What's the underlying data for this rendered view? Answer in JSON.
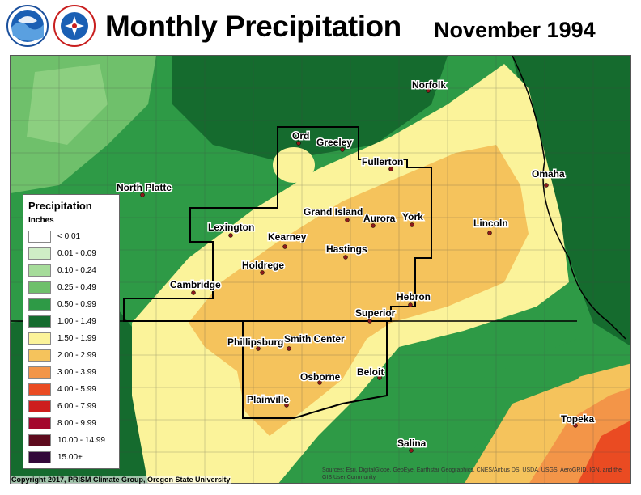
{
  "header": {
    "title": "Monthly Precipitation",
    "date": "November 1994",
    "logos": [
      {
        "name": "noaa-logo",
        "text": "NOAA"
      },
      {
        "name": "nws-logo",
        "text": "NATIONAL WEATHER SERVICE"
      }
    ]
  },
  "legend": {
    "title": "Precipitation",
    "units": "Inches",
    "items": [
      {
        "label": "< 0.01",
        "color": "#ffffff"
      },
      {
        "label": "0.01 - 0.09",
        "color": "#cfeec6"
      },
      {
        "label": "0.10 - 0.24",
        "color": "#a6dc9a"
      },
      {
        "label": "0.25 - 0.49",
        "color": "#6fc06b"
      },
      {
        "label": "0.50 - 0.99",
        "color": "#2e9a46"
      },
      {
        "label": "1.00 - 1.49",
        "color": "#156b2e"
      },
      {
        "label": "1.50 - 1.99",
        "color": "#fbf39a"
      },
      {
        "label": "2.00 - 2.99",
        "color": "#f5c35c"
      },
      {
        "label": "3.00 - 3.99",
        "color": "#f39548"
      },
      {
        "label": "4.00 - 5.99",
        "color": "#ea4b22"
      },
      {
        "label": "6.00 - 7.99",
        "color": "#cd1d1d"
      },
      {
        "label": "8.00 - 9.99",
        "color": "#a4062d"
      },
      {
        "label": "10.00 - 14.99",
        "color": "#5e0b1e"
      },
      {
        "label": "15.00+",
        "color": "#33083a"
      }
    ]
  },
  "cities": [
    {
      "name": "Norfolk"
    },
    {
      "name": "Ord"
    },
    {
      "name": "Greeley"
    },
    {
      "name": "Fullerton"
    },
    {
      "name": "North Platte"
    },
    {
      "name": "Omaha"
    },
    {
      "name": "Grand Island"
    },
    {
      "name": "Aurora"
    },
    {
      "name": "York"
    },
    {
      "name": "Lincoln"
    },
    {
      "name": "Lexington"
    },
    {
      "name": "Kearney"
    },
    {
      "name": "Hastings"
    },
    {
      "name": "Holdrege"
    },
    {
      "name": "Cambridge"
    },
    {
      "name": "Hebron"
    },
    {
      "name": "Superior"
    },
    {
      "name": "Phillipsburg"
    },
    {
      "name": "Smith Center"
    },
    {
      "name": "Osborne"
    },
    {
      "name": "Beloit"
    },
    {
      "name": "Plainville"
    },
    {
      "name": "Topeka"
    },
    {
      "name": "Salina"
    }
  ],
  "footer": {
    "copyright": "Copyright 2017, PRISM Climate Group, Oregon State University",
    "attribution": "Sources: Esri, DigitalGlobe, GeoEye, Earthstar Geographics, CNES/Airbus DS, USDA, USGS, AeroGRID, IGN, and the GIS User Community"
  }
}
